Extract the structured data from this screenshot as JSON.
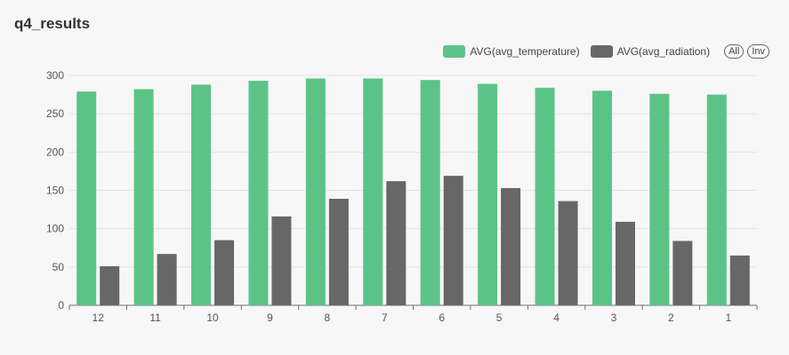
{
  "panel": {
    "title": "q4_results"
  },
  "legend": {
    "all_label": "All",
    "inv_label": "Inv"
  },
  "colors": {
    "temperature": "#5cc386",
    "radiation": "#676767"
  },
  "chart_data": {
    "type": "bar",
    "title": "",
    "xlabel": "",
    "ylabel": "",
    "categories": [
      "12",
      "11",
      "10",
      "9",
      "8",
      "7",
      "6",
      "5",
      "4",
      "3",
      "2",
      "1"
    ],
    "series": [
      {
        "name": "AVG(avg_temperature)",
        "values": [
          279,
          282,
          288,
          293,
          296,
          296,
          294,
          289,
          284,
          280,
          276,
          275
        ]
      },
      {
        "name": "AVG(avg_radiation)",
        "values": [
          51,
          67,
          85,
          116,
          139,
          162,
          169,
          153,
          136,
          109,
          84,
          65
        ]
      }
    ],
    "ylim": [
      0,
      300
    ],
    "yticks": [
      0,
      50,
      100,
      150,
      200,
      250,
      300
    ],
    "grid": true,
    "legend_position": "top-right"
  }
}
